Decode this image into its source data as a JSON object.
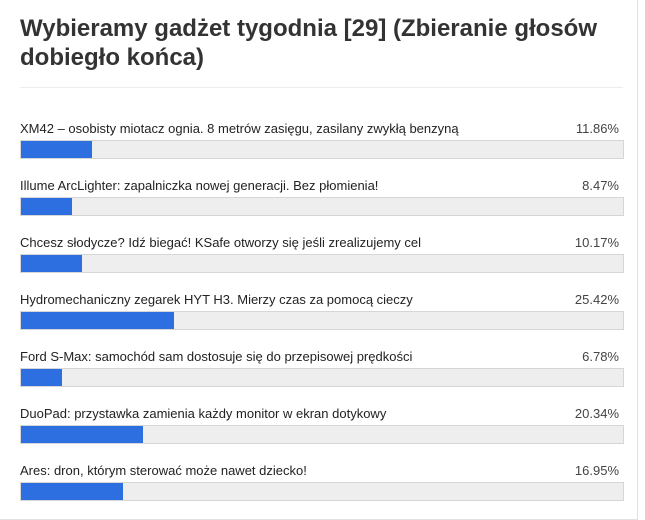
{
  "poll": {
    "title": "Wybieramy gadżet tygodnia [29] (Zbieranie głosów dobiegło końca)",
    "accent_color": "#2d6fe0",
    "options": [
      {
        "label": "XM42 – osobisty miotacz ognia. 8 metrów zasięgu, zasilany zwykłą benzyną",
        "percent_label": "11.86%",
        "fraction": 0.1186
      },
      {
        "label": "Illume ArcLighter: zapalniczka nowej generacji. Bez płomienia!",
        "percent_label": "8.47%",
        "fraction": 0.0847
      },
      {
        "label": "Chcesz słodycze? Idź biegać! KSafe otworzy się jeśli zrealizujemy cel",
        "percent_label": "10.17%",
        "fraction": 0.1017
      },
      {
        "label": "Hydromechaniczny zegarek HYT H3. Mierzy czas za pomocą cieczy",
        "percent_label": "25.42%",
        "fraction": 0.2542
      },
      {
        "label": "Ford S-Max: samochód sam dostosuje się do przepisowej prędkości",
        "percent_label": "6.78%",
        "fraction": 0.0678
      },
      {
        "label": "DuoPad: przystawka zamienia każdy monitor w ekran dotykowy",
        "percent_label": "20.34%",
        "fraction": 0.2034
      },
      {
        "label": "Ares: dron, którym sterować może nawet dziecko!",
        "percent_label": "16.95%",
        "fraction": 0.1695
      }
    ]
  }
}
